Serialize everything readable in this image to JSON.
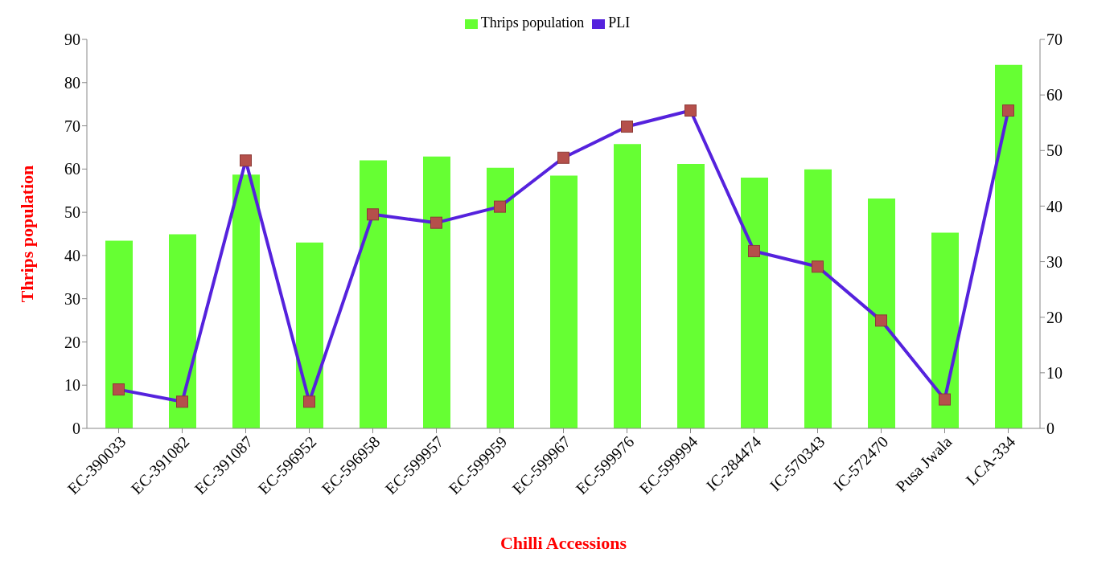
{
  "chart_data": {
    "type": "bar",
    "xlabel": "Chilli Accessions",
    "ylabel": "Thrips population",
    "categories": [
      "EC-390033",
      "EC-391082",
      "EC-391087",
      "EC-596952",
      "EC-596958",
      "EC-599957",
      "EC-599959",
      "EC-599967",
      "EC-599976",
      "EC-599994",
      "IC-284474",
      "IC-570343",
      "IC-572470",
      "Pusa Jwala",
      "LCA-334"
    ],
    "series": [
      {
        "name": "Thrips population",
        "color": "#66ff33",
        "values": [
          43.4,
          44.9,
          58.7,
          43.0,
          62.0,
          62.9,
          60.3,
          58.5,
          65.8,
          61.2,
          58.0,
          59.9,
          53.2,
          45.3,
          84.1
        ]
      },
      {
        "name": "PLI",
        "type": "line",
        "axis": "y2",
        "color": "#5522dd",
        "marker": "square",
        "values": [
          7.0,
          4.8,
          48.2,
          4.8,
          38.5,
          37.0,
          39.9,
          48.7,
          54.3,
          57.2,
          31.9,
          29.1,
          19.4,
          5.2,
          57.2
        ]
      }
    ],
    "ylim": [
      0,
      90
    ],
    "yticks": [
      0,
      10,
      20,
      30,
      40,
      50,
      60,
      70,
      80,
      90
    ],
    "y2lim": [
      0,
      70
    ],
    "y2ticks": [
      0,
      10,
      20,
      30,
      40,
      50,
      60,
      70
    ],
    "legend": "top"
  }
}
